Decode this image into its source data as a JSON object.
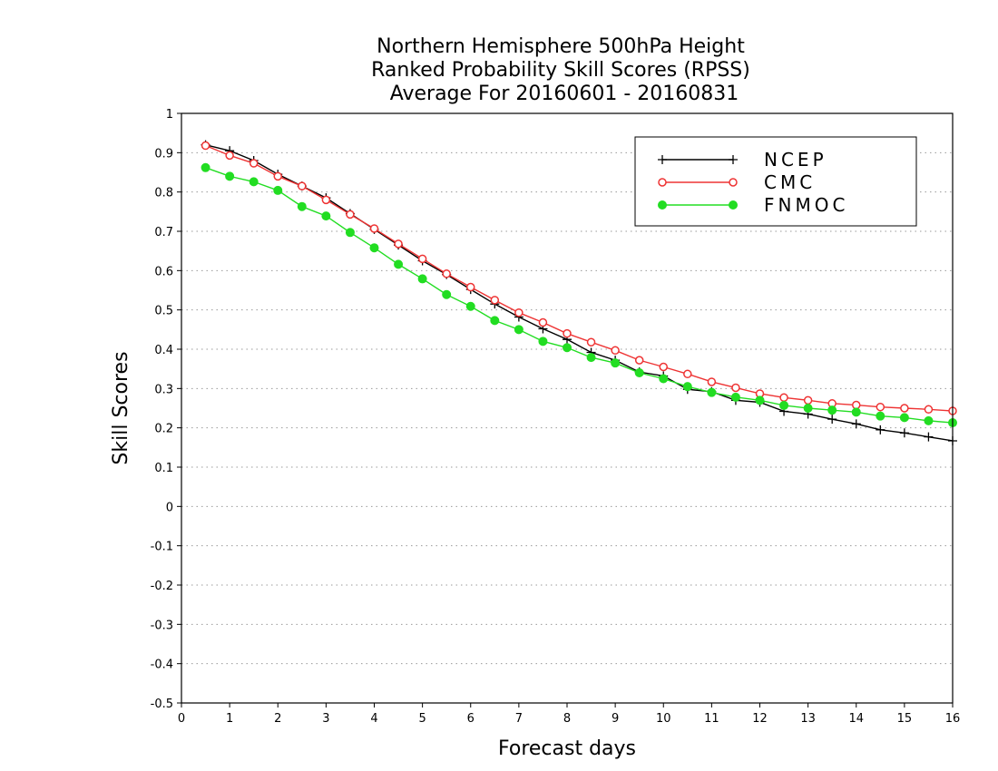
{
  "chart_data": {
    "type": "line",
    "title": [
      "Northern Hemisphere 500hPa Height",
      "Ranked Probability Skill Scores (RPSS)",
      "Average For 20160601 - 20160831"
    ],
    "xlabel": "Forecast days",
    "ylabel": "Skill Scores",
    "xlim": [
      0,
      16
    ],
    "ylim": [
      -0.5,
      1
    ],
    "xticks": [
      "0",
      "1",
      "2",
      "3",
      "4",
      "5",
      "6",
      "7",
      "8",
      "9",
      "10",
      "11",
      "12",
      "13",
      "14",
      "15",
      "16"
    ],
    "yticks": [
      "1",
      "0.9",
      "0.8",
      "0.7",
      "0.6",
      "0.5",
      "0.4",
      "0.3",
      "0.2",
      "0.1",
      "0",
      "-0.1",
      "-0.2",
      "-0.3",
      "-0.4",
      "-0.5"
    ],
    "grid": "horizontal dotted",
    "legend_position": "top-right",
    "x": [
      0.5,
      1,
      1.5,
      2,
      2.5,
      3,
      3.5,
      4,
      4.5,
      5,
      5.5,
      6,
      6.5,
      7,
      7.5,
      8,
      8.5,
      9,
      9.5,
      10,
      10.5,
      11,
      11.5,
      12,
      12.5,
      13,
      13.5,
      14,
      14.5,
      15,
      15.5,
      16
    ],
    "series": [
      {
        "name": "NCEP",
        "color": "#000000",
        "marker": "plus",
        "values": [
          0.92,
          0.905,
          0.88,
          0.845,
          0.815,
          0.785,
          0.745,
          0.705,
          0.665,
          0.625,
          0.59,
          0.552,
          0.515,
          0.482,
          0.452,
          0.425,
          0.392,
          0.372,
          0.342,
          0.332,
          0.298,
          0.292,
          0.27,
          0.265,
          0.242,
          0.235,
          0.222,
          0.21,
          0.195,
          0.187,
          0.177,
          0.167
        ]
      },
      {
        "name": "CMC",
        "color": "#ee3333",
        "marker": "open-circle",
        "values": [
          0.918,
          0.893,
          0.873,
          0.84,
          0.815,
          0.78,
          0.743,
          0.707,
          0.668,
          0.63,
          0.592,
          0.558,
          0.525,
          0.493,
          0.468,
          0.44,
          0.418,
          0.397,
          0.372,
          0.355,
          0.337,
          0.317,
          0.302,
          0.287,
          0.277,
          0.27,
          0.262,
          0.258,
          0.253,
          0.25,
          0.247,
          0.243
        ]
      },
      {
        "name": "FNMOC",
        "color": "#22dd22",
        "marker": "filled-circle",
        "values": [
          0.862,
          0.84,
          0.826,
          0.804,
          0.763,
          0.739,
          0.697,
          0.658,
          0.616,
          0.579,
          0.539,
          0.509,
          0.473,
          0.45,
          0.42,
          0.404,
          0.379,
          0.365,
          0.34,
          0.325,
          0.305,
          0.29,
          0.278,
          0.27,
          0.257,
          0.25,
          0.245,
          0.24,
          0.23,
          0.226,
          0.218,
          0.213
        ]
      }
    ]
  }
}
